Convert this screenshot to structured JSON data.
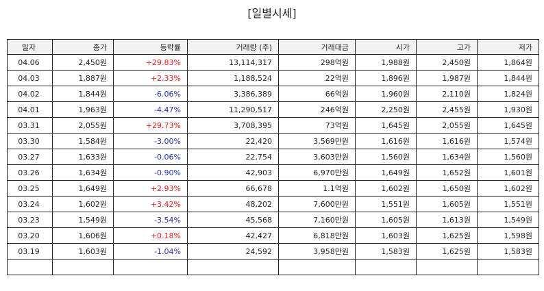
{
  "page": {
    "title": "[일별시세]"
  },
  "table": {
    "columns": [
      "일자",
      "종가",
      "등락률",
      "거래량 (주)",
      "거래대금",
      "시가",
      "고가",
      "저가"
    ],
    "rows": [
      {
        "date": "04.06",
        "close": "2,450원",
        "change": "+29.83%",
        "dir": "up",
        "volume": "13,114,317",
        "amount": "298억원",
        "open": "1,988원",
        "high": "2,450원",
        "low": "1,864원"
      },
      {
        "date": "04.03",
        "close": "1,887원",
        "change": "+2.33%",
        "dir": "up",
        "volume": "1,188,524",
        "amount": "22억원",
        "open": "1,896원",
        "high": "1,987원",
        "low": "1,844원"
      },
      {
        "date": "04.02",
        "close": "1,844원",
        "change": "-6.06%",
        "dir": "down",
        "volume": "3,386,389",
        "amount": "66억원",
        "open": "1,960원",
        "high": "2,110원",
        "low": "1,824원"
      },
      {
        "date": "04.01",
        "close": "1,963원",
        "change": "-4.47%",
        "dir": "down",
        "volume": "11,290,517",
        "amount": "246억원",
        "open": "2,250원",
        "high": "2,455원",
        "low": "1,930원"
      },
      {
        "date": "03.31",
        "close": "2,055원",
        "change": "+29.73%",
        "dir": "up",
        "volume": "3,708,395",
        "amount": "73억원",
        "open": "1,645원",
        "high": "2,055원",
        "low": "1,645원"
      },
      {
        "date": "03.30",
        "close": "1,584원",
        "change": "-3.00%",
        "dir": "down",
        "volume": "22,420",
        "amount": "3,569만원",
        "open": "1,616원",
        "high": "1,616원",
        "low": "1,574원"
      },
      {
        "date": "03.27",
        "close": "1,633원",
        "change": "-0.06%",
        "dir": "down",
        "volume": "22,754",
        "amount": "3,603만원",
        "open": "1,560원",
        "high": "1,634원",
        "low": "1,560원"
      },
      {
        "date": "03.26",
        "close": "1,634원",
        "change": "-0.90%",
        "dir": "down",
        "volume": "42,903",
        "amount": "6,970만원",
        "open": "1,649원",
        "high": "1,652원",
        "low": "1,601원"
      },
      {
        "date": "03.25",
        "close": "1,649원",
        "change": "+2.93%",
        "dir": "up",
        "volume": "66,678",
        "amount": "1.1억원",
        "open": "1,602원",
        "high": "1,650원",
        "low": "1,602원"
      },
      {
        "date": "03.24",
        "close": "1,602원",
        "change": "+3.42%",
        "dir": "up",
        "volume": "48,202",
        "amount": "7,600만원",
        "open": "1,551원",
        "high": "1,605원",
        "low": "1,551원"
      },
      {
        "date": "03.23",
        "close": "1,549원",
        "change": "-3.54%",
        "dir": "down",
        "volume": "45,568",
        "amount": "7,160만원",
        "open": "1,605원",
        "high": "1,613원",
        "low": "1,549원"
      },
      {
        "date": "03.20",
        "close": "1,606원",
        "change": "+0.18%",
        "dir": "up",
        "volume": "42,427",
        "amount": "6,818만원",
        "open": "1,603원",
        "high": "1,625원",
        "low": "1,598원"
      },
      {
        "date": "03.19",
        "close": "1,603원",
        "change": "-1.04%",
        "dir": "down",
        "volume": "24,592",
        "amount": "3,958만원",
        "open": "1,583원",
        "high": "1,625원",
        "low": "1,583원"
      }
    ],
    "colors": {
      "up": "#e0201f",
      "down": "#2530a8",
      "header_bg": "#f2f2f2"
    }
  }
}
